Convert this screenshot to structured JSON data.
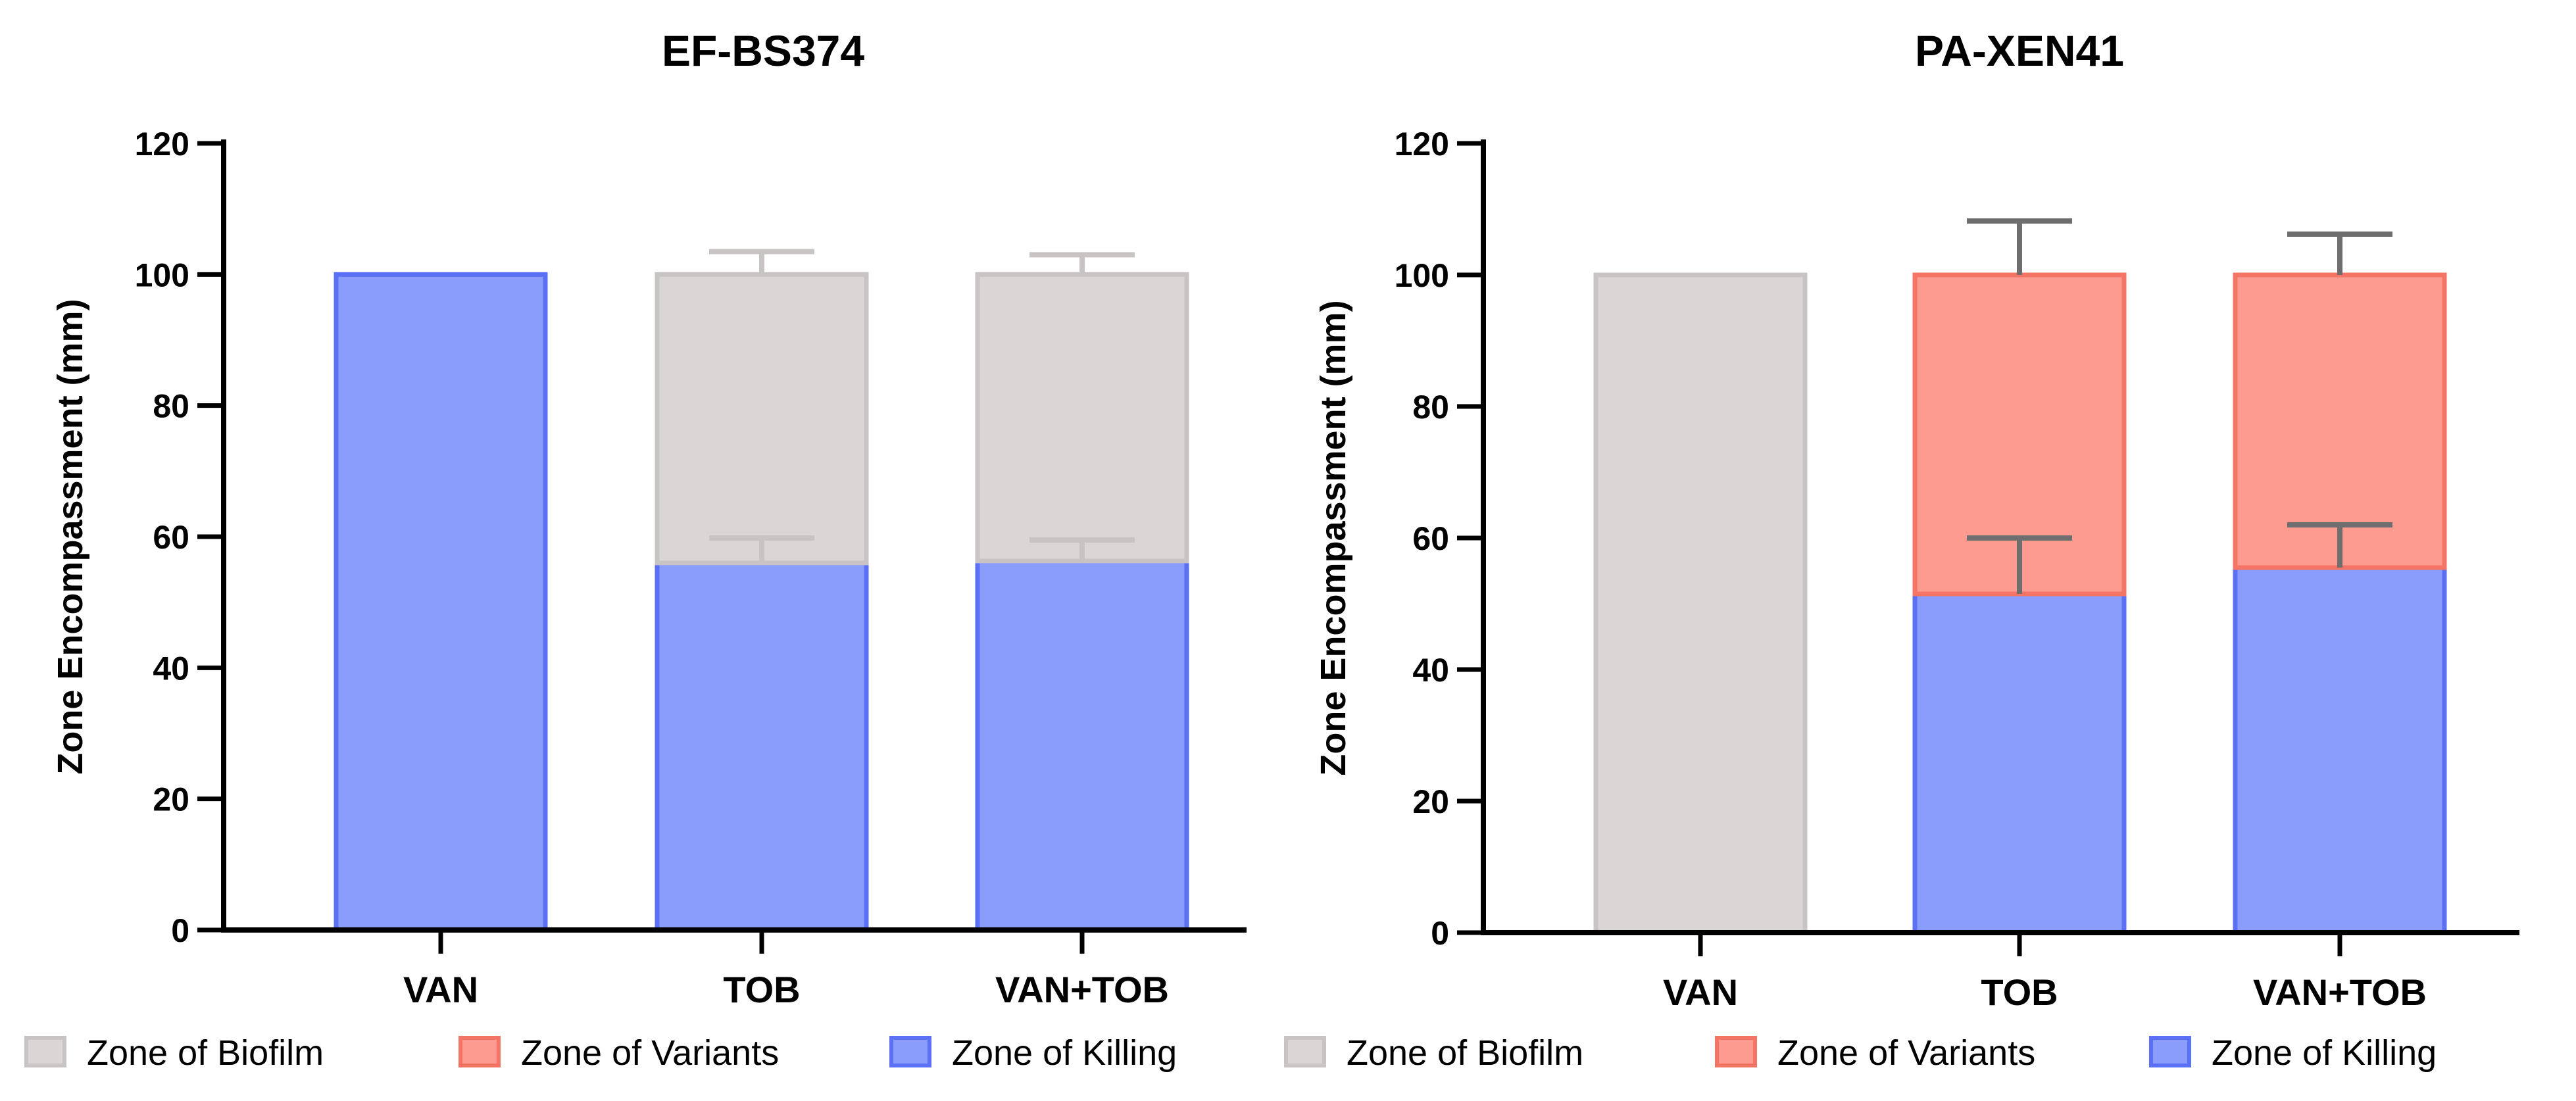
{
  "chart_data": [
    {
      "type": "bar",
      "stacked": true,
      "title": "EF-BS374",
      "ylabel": "Zone Encompassment (mm)",
      "xlabel": "",
      "ylim": [
        0,
        120
      ],
      "yticks": [
        0,
        20,
        40,
        60,
        80,
        100,
        120
      ],
      "categories": [
        "VAN",
        "TOB",
        "VAN+TOB"
      ],
      "series": [
        {
          "name": "Zone of Killing",
          "key": "killing",
          "values": [
            100,
            56,
            56.3
          ],
          "errors": [
            null,
            3.8,
            3.2
          ]
        },
        {
          "name": "Zone of Variants",
          "key": "variants",
          "values": [
            0,
            0,
            0
          ],
          "errors": [
            null,
            null,
            null
          ]
        },
        {
          "name": "Zone of Biofilm",
          "key": "biofilm",
          "values": [
            0,
            44,
            43.7
          ],
          "errors": [
            null,
            3.5,
            3.0
          ]
        }
      ],
      "legend": [
        "Zone of Biofilm",
        "Zone of Variants",
        "Zone of Killing"
      ],
      "error_color": "#c9c4c4"
    },
    {
      "type": "bar",
      "stacked": true,
      "title": "PA-XEN41",
      "ylabel": "Zone Encompassment (mm)",
      "xlabel": "",
      "ylim": [
        0,
        120
      ],
      "yticks": [
        0,
        20,
        40,
        60,
        80,
        100,
        120
      ],
      "categories": [
        "VAN",
        "TOB",
        "VAN+TOB"
      ],
      "series": [
        {
          "name": "Zone of Killing",
          "key": "killing",
          "values": [
            0,
            51.5,
            55.5
          ],
          "errors": [
            null,
            8.5,
            6.5
          ]
        },
        {
          "name": "Zone of Variants",
          "key": "variants",
          "values": [
            0,
            48.5,
            44.5
          ],
          "errors": [
            null,
            8.2,
            6.2
          ]
        },
        {
          "name": "Zone of Biofilm",
          "key": "biofilm",
          "values": [
            100,
            0,
            0
          ],
          "errors": [
            null,
            null,
            null
          ]
        }
      ],
      "legend": [
        "Zone of Biofilm",
        "Zone of Variants",
        "Zone of Killing"
      ],
      "error_color": "#6e6e6e"
    }
  ],
  "colors": {
    "killing_fill": "#8a9cfc",
    "killing_stroke": "#5b70f5",
    "variants_fill": "#fd9b91",
    "variants_stroke": "#f47466",
    "biofilm_fill": "#dbd6d6",
    "biofilm_stroke": "#c9c4c4",
    "axis": "#000000"
  }
}
